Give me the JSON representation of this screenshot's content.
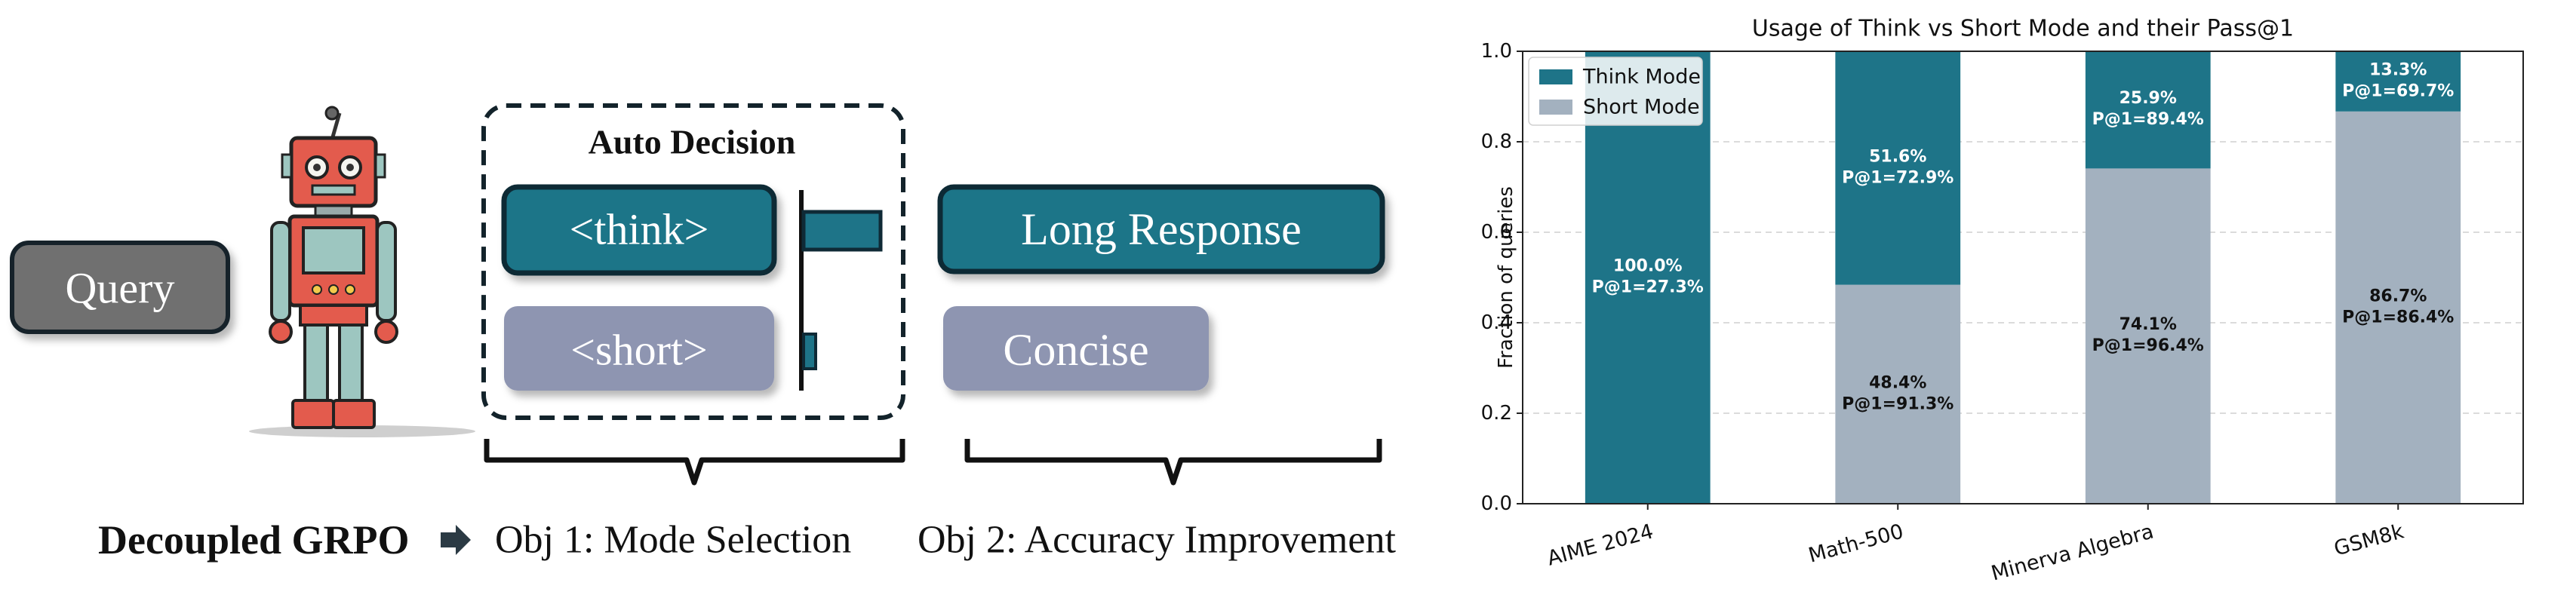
{
  "diagram": {
    "query_label": "Query",
    "auto_decision_title": "Auto Decision",
    "think_tag": "<think>",
    "short_tag": "<short>",
    "long_response": "Long Response",
    "concise": "Concise",
    "method_name": "Decoupled GRPO",
    "objective_1": "Obj 1: Mode Selection",
    "objective_2": "Obj 2: Accuracy Improvement",
    "colors": {
      "teal": "#1e7488",
      "teal_border": "#0f2a36",
      "lavender": "#8e95b1",
      "query_gray": "#707070"
    }
  },
  "chart_data": {
    "type": "bar",
    "stacked": true,
    "title": "Usage of Think vs Short Mode and their Pass@1",
    "xlabel": "",
    "ylabel": "Fraction of queries",
    "ylim": [
      0,
      1.0
    ],
    "yticks": [
      "0.0",
      "0.2",
      "0.4",
      "0.6",
      "0.8",
      "1.0"
    ],
    "grid": "horizontal dashed",
    "legend_position": "top-left",
    "categories": [
      "AIME 2024",
      "Math-500",
      "Minerva Algebra",
      "GSM8k"
    ],
    "series": [
      {
        "name": "Short Mode",
        "color": "#a3b1bf",
        "values": [
          0.0,
          0.484,
          0.741,
          0.867
        ],
        "labels": [
          "",
          "48.4%",
          "74.1%",
          "86.7%"
        ],
        "pass_labels": [
          "",
          "P@1=91.3%",
          "P@1=96.4%",
          "P@1=86.4%"
        ]
      },
      {
        "name": "Think Mode",
        "color": "#1e7488",
        "values": [
          1.0,
          0.516,
          0.259,
          0.133
        ],
        "labels": [
          "100.0%",
          "51.6%",
          "25.9%",
          "13.3%"
        ],
        "pass_labels": [
          "P@1=27.3%",
          "P@1=72.9%",
          "P@1=89.4%",
          "P@1=69.7%"
        ]
      }
    ]
  }
}
